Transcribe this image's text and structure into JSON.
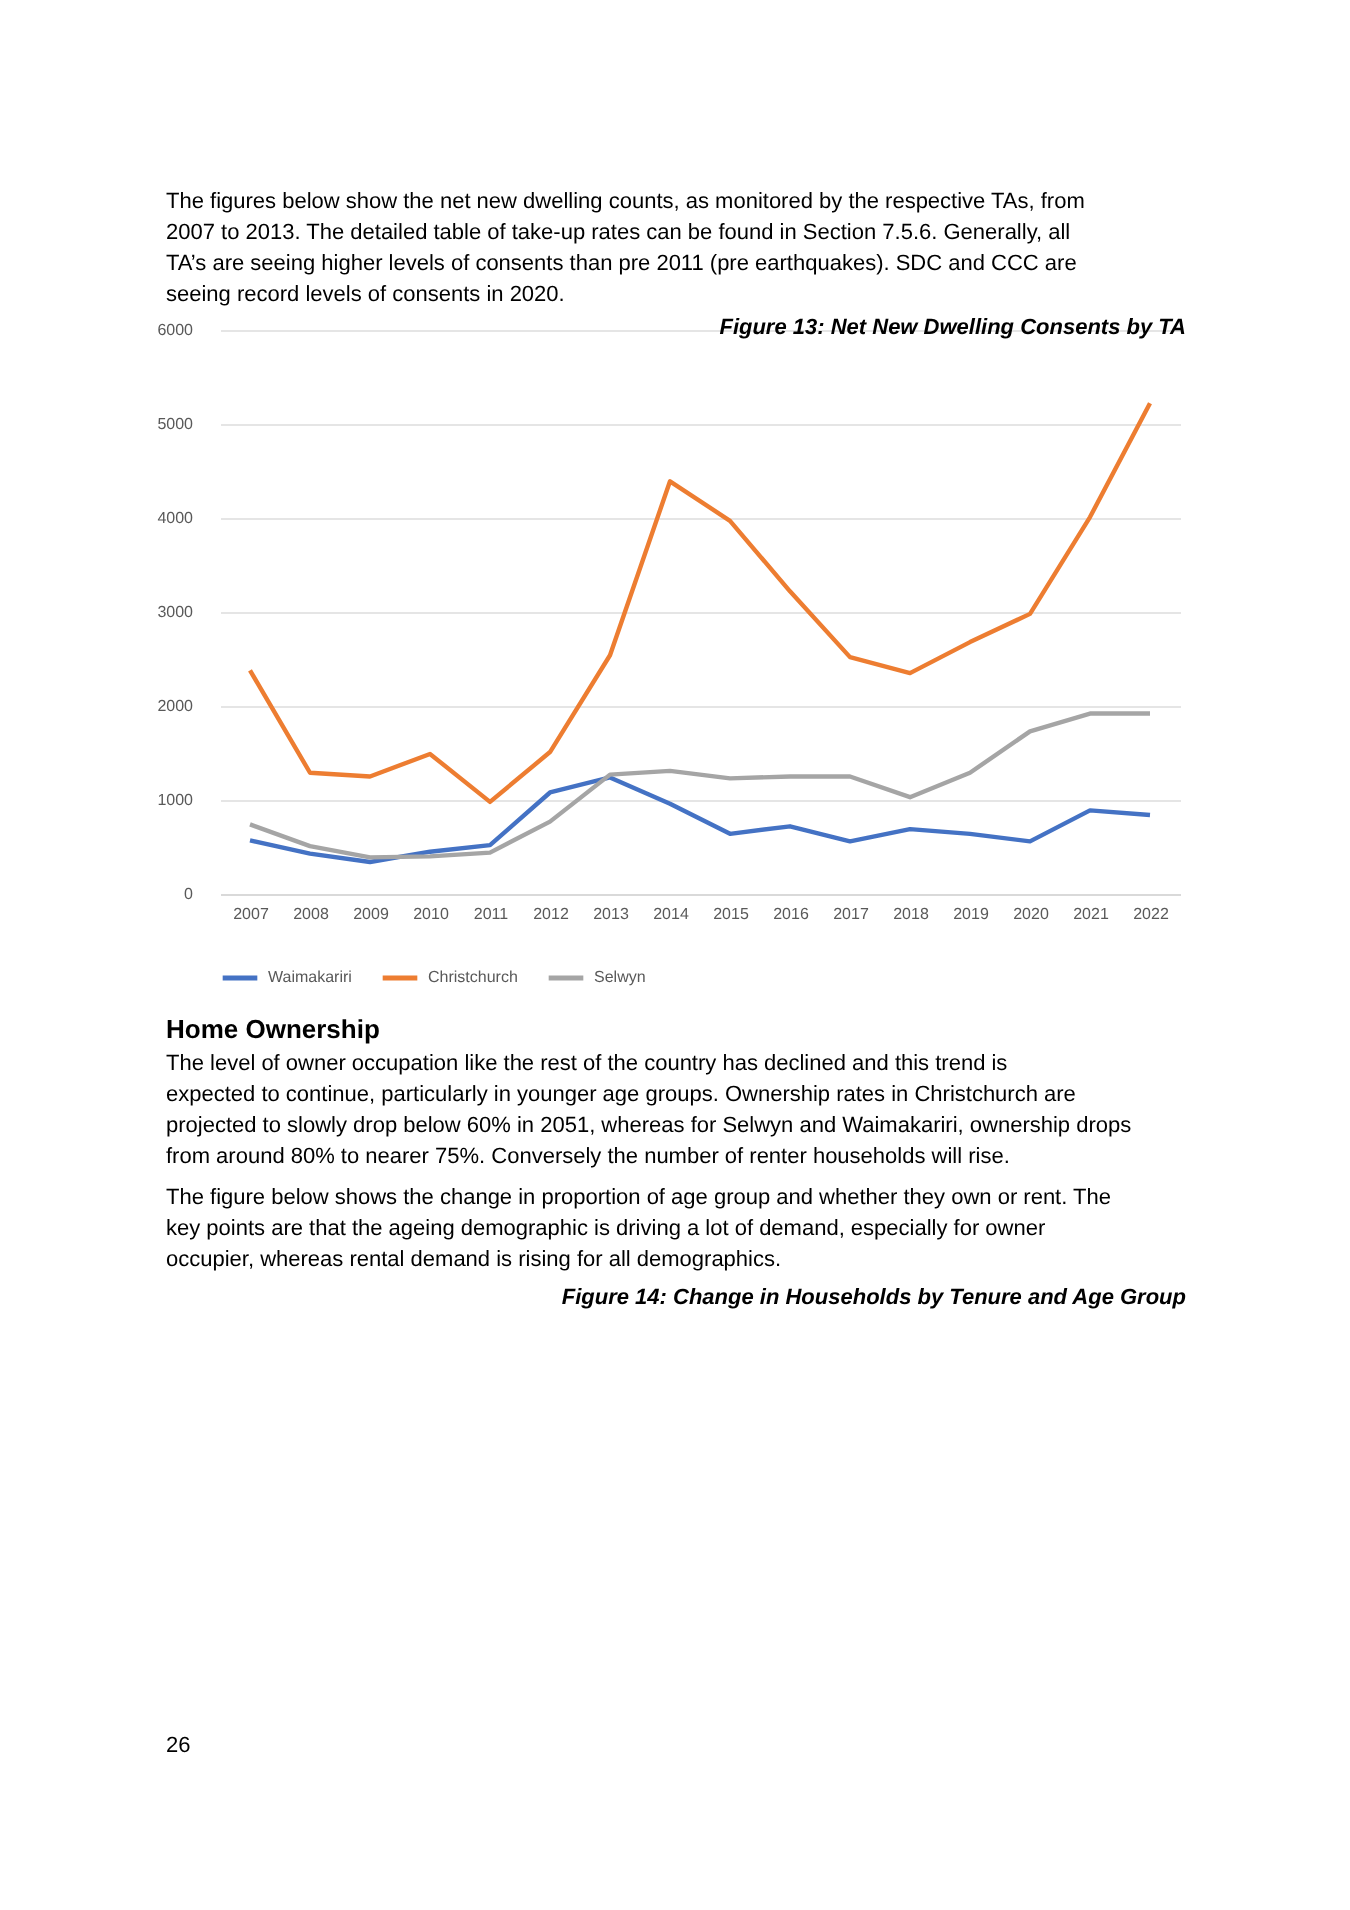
{
  "chart_data": {
    "type": "line",
    "title": "Figure 13: Net New Dwelling Consents by TA",
    "categories": [
      "2007",
      "2008",
      "2009",
      "2010",
      "2011",
      "2012",
      "2013",
      "2014",
      "2015",
      "2016",
      "2017",
      "2018",
      "2019",
      "2020",
      "2021",
      "2022"
    ],
    "series": [
      {
        "name": "Waimakariri",
        "color": "#4472c4",
        "values": [
          570,
          430,
          340,
          450,
          520,
          1080,
          1240,
          960,
          640,
          720,
          560,
          690,
          640,
          560,
          890,
          840
        ]
      },
      {
        "name": "Christchurch",
        "color": "#ed7d31",
        "values": [
          2380,
          1290,
          1250,
          1490,
          980,
          1510,
          2540,
          4390,
          3970,
          3220,
          2520,
          2350,
          2680,
          2980,
          4010,
          5220
        ]
      },
      {
        "name": "Selwyn",
        "color": "#a5a5a5",
        "values": [
          740,
          510,
          390,
          400,
          440,
          770,
          1270,
          1310,
          1230,
          1250,
          1250,
          1030,
          1290,
          1730,
          1920,
          1920
        ]
      }
    ],
    "ylim": [
      0,
      6000
    ],
    "yticks": [
      0,
      {
        "value": 1000,
        "label": "1000"
      },
      {
        "value": 2000,
        "label": "2000"
      },
      {
        "value": 3000,
        "label": "3000"
      },
      {
        "value": 4000,
        "label": "4000"
      },
      {
        "value": 5000,
        "label": "5000"
      },
      {
        "value": 6000,
        "label": "6000"
      }
    ],
    "grid": "y",
    "legend": "bottom",
    "marker": "none",
    "line_style": "solid",
    "annotations": [
      "The figures below show the net new dwelling counts, as monitored by the respective TAs, from 2007 to 2013. The detailed table of take-up rates can be found in Section 7.5.6. Generally, all TA’s are seeing higher levels of consents than pre 2011 (pre earthquakes). SDC and CCC are seeing record levels of consents in 2020.",
      "Home Ownership",
      "The level of owner occupation like the rest of the country has declined and this trend is expected to continue, particularly in younger age groups. Ownership rates in Christchurch are projected to slowly drop below 60% in 2051, whereas for Selwyn and Waimakariri, ownership drops from around 80% to nearer 75%. Conversely the number of renter households will rise.",
      "The figure below shows the change in proportion of age group and whether they own or rent. The key points are that the ageing demographic is driving a lot of demand, especially for owner occupier, whereas rental demand is rising for all demographics.",
      "Figure 14: Change in Households by Tenure and Age Group",
      "26"
    ]
  }
}
